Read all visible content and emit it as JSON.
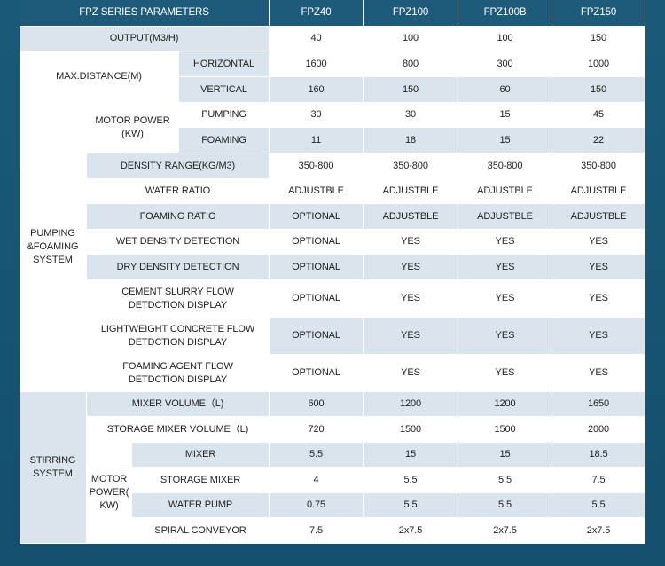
{
  "header": {
    "title": "FPZ SERIES PARAMETERS",
    "models": [
      "FPZ40",
      "FPZ100",
      "FPZ100B",
      "FPZ150"
    ]
  },
  "rows": {
    "output": {
      "label": "OUTPUT(M3/H)",
      "values": [
        "40",
        "100",
        "100",
        "150"
      ]
    },
    "max_distance": {
      "label": "MAX.DISTANCE(M)",
      "horizontal": {
        "label": "HORIZONTAL",
        "values": [
          "1600",
          "800",
          "300",
          "1000"
        ]
      },
      "vertical": {
        "label": "VERTICAL",
        "values": [
          "160",
          "150",
          "60",
          "150"
        ]
      }
    },
    "pumping_system": {
      "label": "PUMPING &FOAMING SYSTEM",
      "motor_power": {
        "label": "MOTOR POWER (KW)",
        "pumping": {
          "label": "PUMPING",
          "values": [
            "30",
            "30",
            "15",
            "45"
          ]
        },
        "foaming": {
          "label": "FOAMING",
          "values": [
            "11",
            "18",
            "15",
            "22"
          ]
        }
      },
      "density_range": {
        "label": "DENSITY RANGE(KG/M3)",
        "values": [
          "350-800",
          "350-800",
          "350-800",
          "350-800"
        ]
      },
      "water_ratio": {
        "label": "WATER RATIO",
        "values": [
          "ADJUSTBLE",
          "ADJUSTBLE",
          "ADJUSTBLE",
          "ADJUSTBLE"
        ]
      },
      "foaming_ratio": {
        "label": "FOAMING RATIO",
        "values": [
          "OPTIONAL",
          "ADJUSTBLE",
          "ADJUSTBLE",
          "ADJUSTBLE"
        ]
      },
      "wet_density": {
        "label": "WET DENSITY DETECTION",
        "values": [
          "OPTIONAL",
          "YES",
          "YES",
          "YES"
        ]
      },
      "dry_density": {
        "label": "DRY DENSITY DETECTION",
        "values": [
          "OPTIONAL",
          "YES",
          "YES",
          "YES"
        ]
      },
      "cement_slurry": {
        "label": "CEMENT SLURRY FLOW DETDCTION DISPLAY",
        "values": [
          "OPTIONAL",
          "YES",
          "YES",
          "YES"
        ]
      },
      "lightweight_concrete": {
        "label": "LIGHTWEIGHT CONCRETE FLOW DETDCTION DISPLAY",
        "values": [
          "OPTIONAL",
          "YES",
          "YES",
          "YES"
        ]
      },
      "foaming_agent": {
        "label": "FOAMING AGENT FLOW DETDCTION DISPLAY",
        "values": [
          "OPTIONAL",
          "YES",
          "YES",
          "YES"
        ]
      }
    },
    "stirring_system": {
      "label": "STIRRING SYSTEM",
      "mixer_volume": {
        "label": "MIXER VOLUME（L)",
        "values": [
          "600",
          "1200",
          "1200",
          "1650"
        ]
      },
      "storage_mixer_volume": {
        "label": "STORAGE MIXER VOLUME（L)",
        "values": [
          "720",
          "1500",
          "1500",
          "2000"
        ]
      },
      "motor_power": {
        "label": "MOTOR POWER( KW)",
        "mixer": {
          "label": "MIXER",
          "values": [
            "5.5",
            "15",
            "15",
            "18.5"
          ]
        },
        "storage_mixer": {
          "label": "STORAGE MIXER",
          "values": [
            "4",
            "5.5",
            "5.5",
            "7.5"
          ]
        },
        "water_pump": {
          "label": "WATER PUMP",
          "values": [
            "0.75",
            "5.5",
            "5.5",
            "5.5"
          ]
        },
        "spiral_conveyor": {
          "label": "SPIRAL CONVEYOR",
          "values": [
            "7.5",
            "2x7.5",
            "2x7.5",
            "2x7.5"
          ]
        }
      }
    }
  }
}
